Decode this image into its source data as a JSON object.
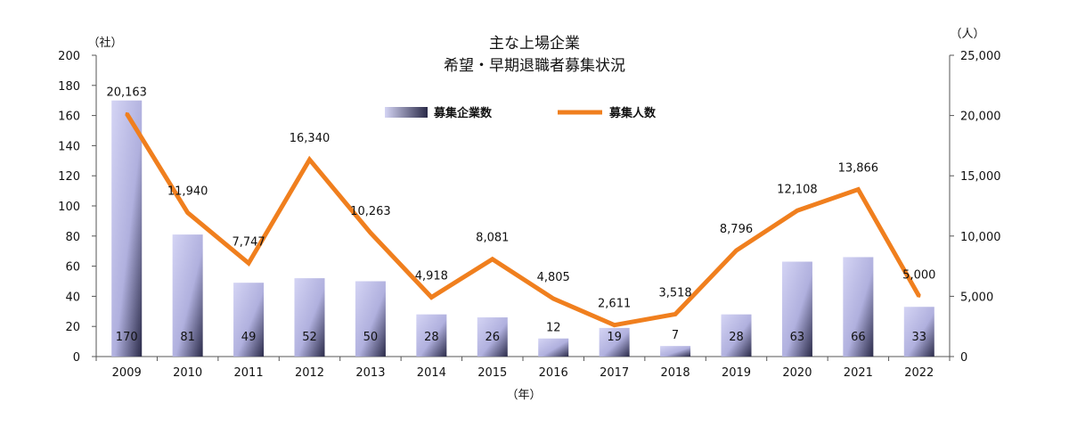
{
  "chart_data": {
    "type": "bar",
    "title_lines": [
      "主な上場企業",
      "希望・早期退職者募集状況"
    ],
    "categories": [
      "2009",
      "2010",
      "2011",
      "2012",
      "2013",
      "2014",
      "2015",
      "2016",
      "2017",
      "2018",
      "2019",
      "2020",
      "2021",
      "2022"
    ],
    "series": [
      {
        "name": "募集企業数",
        "type": "bar",
        "axis": "left",
        "values": [
          170,
          81,
          49,
          52,
          50,
          28,
          26,
          12,
          19,
          7,
          28,
          63,
          66,
          33
        ]
      },
      {
        "name": "募集人数",
        "type": "line",
        "axis": "right",
        "values": [
          20163,
          11940,
          7747,
          16340,
          10263,
          4918,
          8081,
          4805,
          2611,
          3518,
          8796,
          12108,
          13866,
          5000
        ],
        "labels": [
          "20,163",
          "11,940",
          "7,747",
          "16,340",
          "10,263",
          "4,918",
          "8,081",
          "4,805",
          "2,611",
          "3,518",
          "8,796",
          "12,108",
          "13,866",
          "5,000"
        ]
      }
    ],
    "y_left": {
      "unit": "（社）",
      "ylim": [
        0,
        200
      ],
      "ticks": [
        "0",
        "20",
        "40",
        "60",
        "80",
        "100",
        "120",
        "140",
        "160",
        "180",
        "200"
      ]
    },
    "y_right": {
      "unit": "（人）",
      "ylim": [
        0,
        25000
      ],
      "ticks": [
        "0",
        "5,000",
        "10,000",
        "15,000",
        "20,000",
        "25,000"
      ]
    },
    "xlabel": "（年）",
    "legend_position": "top-center",
    "colors": {
      "bar_light": "#c9c9ef",
      "bar_dark": "#2a2a48",
      "line": "#f07f1e",
      "axis": "#555555"
    }
  }
}
